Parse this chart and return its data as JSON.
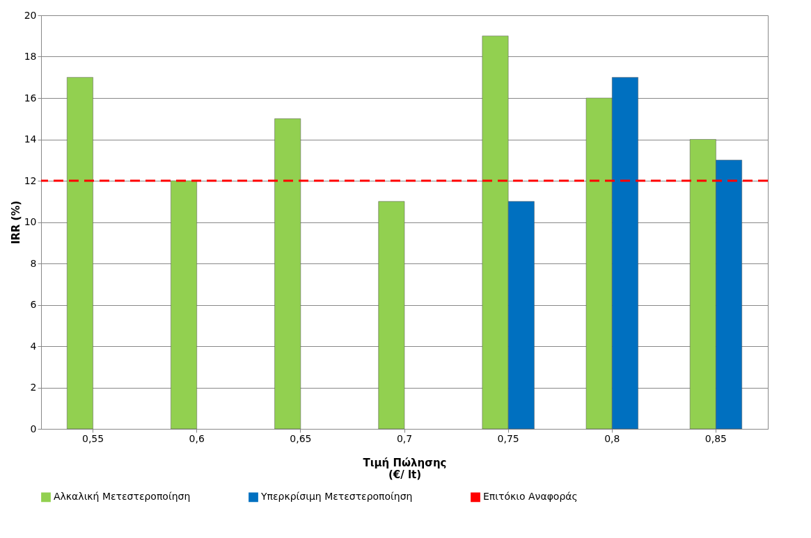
{
  "chart_data": {
    "type": "bar",
    "ylabel": "IRR (%)",
    "xlabel": "Τιμή Πώλησης\n(€/ lt)",
    "categories": [
      "0,55",
      "0,6",
      "0,65",
      "0,7",
      "0,75",
      "0,8",
      "0,85"
    ],
    "series": [
      {
        "name": "Αλκαλική Μετεστεροποίηση",
        "color": "#92d050",
        "values": [
          17,
          12,
          15,
          11,
          19,
          16,
          14
        ]
      },
      {
        "name": "Υπερκρίσιμη Μετεστεροποίηση",
        "color": "#0070c0",
        "values": [
          null,
          null,
          null,
          null,
          11,
          17,
          13
        ]
      }
    ],
    "ref_lines": [
      {
        "axis": "y",
        "value": 12,
        "label": "Επιτόκιο Αναφοράς",
        "color": "#ff0000",
        "line_style": "dashed"
      }
    ],
    "ylim": [
      0,
      20
    ],
    "yticks": [
      0,
      2,
      4,
      6,
      8,
      10,
      12,
      14,
      16,
      18,
      20
    ],
    "grid": "y",
    "legend": "bottom"
  }
}
